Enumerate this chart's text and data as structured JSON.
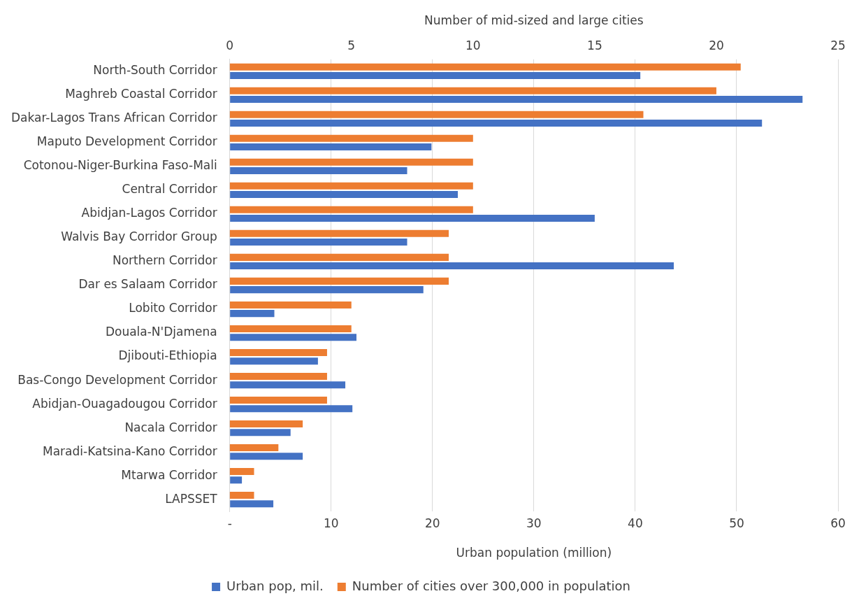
{
  "chart_data": {
    "type": "bar",
    "orientation": "horizontal",
    "categories": [
      "North-South Corridor",
      "Maghreb Coastal Corridor",
      "Dakar-Lagos Trans African Corridor",
      "Maputo Development Corridor",
      "Cotonou-Niger-Burkina Faso-Mali",
      "Central Corridor",
      "Abidjan-Lagos Corridor",
      "Walvis Bay Corridor Group",
      "Northern Corridor",
      "Dar es Salaam Corridor",
      "Lobito Corridor",
      "Douala-N'Djamena",
      "Djibouti-Ethiopia",
      "Bas-Congo Development Corridor",
      "Abidjan-Ouagadougou Corridor",
      "Nacala Corridor",
      "Maradi-Katsina-Kano Corridor",
      "Mtarwa Corridor",
      "LAPSSET"
    ],
    "series": [
      {
        "name": "Urban pop, mil.",
        "color": "#4472c4",
        "values": [
          40.5,
          56.5,
          52.5,
          19.9,
          17.5,
          22.5,
          36.0,
          17.5,
          43.8,
          19.1,
          4.4,
          12.5,
          8.7,
          11.4,
          12.1,
          6.0,
          7.2,
          1.2,
          4.3
        ]
      },
      {
        "name": "Number of cities over 300,000 in population",
        "color": "#ed7d31",
        "axis": "x2",
        "values": [
          21,
          20,
          17,
          10,
          10,
          10,
          10,
          9,
          9,
          9,
          5,
          5,
          4,
          4,
          4,
          3,
          2,
          1,
          1
        ]
      }
    ],
    "xlabel": "Urban population (million)",
    "x2label": "Number of mid-sized and large cities",
    "xlim": [
      0,
      60
    ],
    "xticks": [
      {
        "value": 0,
        "label": "-"
      },
      10,
      20,
      30,
      40,
      50,
      60
    ],
    "x2lim": [
      0,
      25
    ],
    "x2ticks": [
      0,
      5,
      10,
      15,
      20,
      25
    ],
    "grid": "x",
    "legend": "bottom"
  }
}
